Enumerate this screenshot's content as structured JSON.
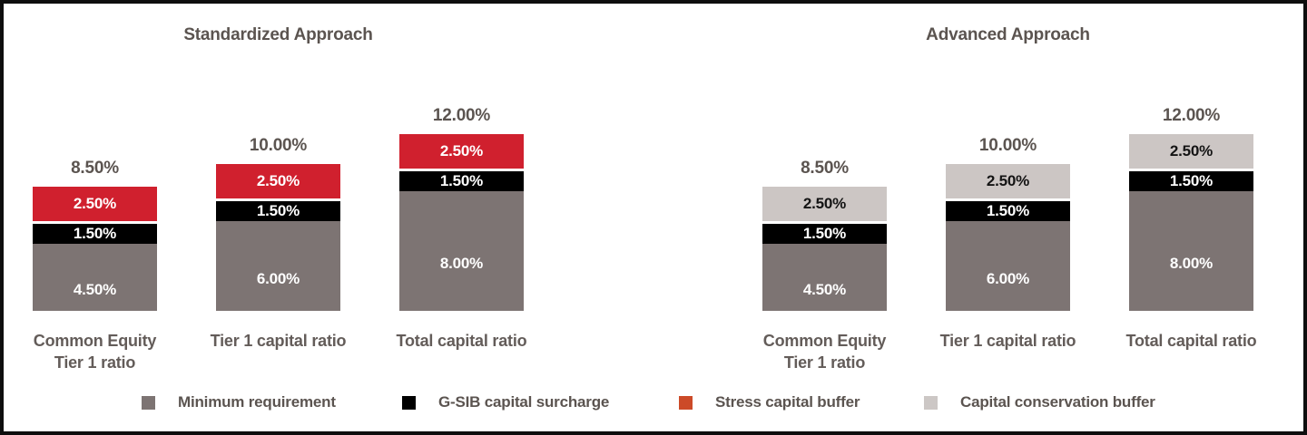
{
  "figure": {
    "background": "#ffffff",
    "border_color": "#0e0e0e"
  },
  "chart_data": {
    "type": "bar",
    "stacked": true,
    "orientation": "vertical",
    "grid": false,
    "axes_shown": false,
    "value_suffix": "%",
    "ylim": [
      0,
      12
    ],
    "panels": [
      {
        "id": "standardized",
        "title": "Standardized Approach",
        "categories": [
          "Common Equity Tier 1 ratio",
          "Tier 1 capital ratio",
          "Total capital ratio"
        ],
        "category_lines": [
          [
            "Common Equity",
            "Tier 1 ratio"
          ],
          [
            "Tier 1 capital ratio"
          ],
          [
            "Total capital ratio"
          ]
        ],
        "totals": [
          "8.50%",
          "10.00%",
          "12.00%"
        ],
        "total_values": [
          8.5,
          10.0,
          12.0
        ],
        "series": [
          {
            "name": "Minimum requirement",
            "color": "#7d7473",
            "text_color": "#ffffff",
            "values": [
              4.5,
              6.0,
              8.0
            ],
            "labels": [
              "4.50%",
              "6.00%",
              "8.00%"
            ]
          },
          {
            "name": "G-SIB capital surcharge",
            "color": "#000000",
            "text_color": "#ffffff",
            "values": [
              1.5,
              1.5,
              1.5
            ],
            "labels": [
              "1.50%",
              "1.50%",
              "1.50%"
            ]
          },
          {
            "name": "Stress capital buffer",
            "color": "#d0202e",
            "text_color": "#ffffff",
            "values": [
              2.5,
              2.5,
              2.5
            ],
            "labels": [
              "2.50%",
              "2.50%",
              "2.50%"
            ]
          }
        ]
      },
      {
        "id": "advanced",
        "title": "Advanced Approach",
        "categories": [
          "Common Equity Tier 1 ratio",
          "Tier 1 capital ratio",
          "Total capital ratio"
        ],
        "category_lines": [
          [
            "Common Equity",
            "Tier 1 ratio"
          ],
          [
            "Tier 1 capital ratio"
          ],
          [
            "Total capital ratio"
          ]
        ],
        "totals": [
          "8.50%",
          "10.00%",
          "12.00%"
        ],
        "total_values": [
          8.5,
          10.0,
          12.0
        ],
        "series": [
          {
            "name": "Minimum requirement",
            "color": "#7d7473",
            "text_color": "#ffffff",
            "values": [
              4.5,
              6.0,
              8.0
            ],
            "labels": [
              "4.50%",
              "6.00%",
              "8.00%"
            ]
          },
          {
            "name": "G-SIB capital surcharge",
            "color": "#000000",
            "text_color": "#ffffff",
            "values": [
              1.5,
              1.5,
              1.5
            ],
            "labels": [
              "1.50%",
              "1.50%",
              "1.50%"
            ]
          },
          {
            "name": "Capital conservation buffer",
            "color": "#ccc6c4",
            "text_color": "#141414",
            "values": [
              2.5,
              2.5,
              2.5
            ],
            "labels": [
              "2.50%",
              "2.50%",
              "2.50%"
            ]
          }
        ]
      }
    ],
    "legend": {
      "position": "bottom",
      "items": [
        {
          "label": "Minimum requirement",
          "color": "#7d7473"
        },
        {
          "label": "G-SIB capital surcharge",
          "color": "#000000"
        },
        {
          "label": "Stress capital buffer",
          "color": "#cc4a28"
        },
        {
          "label": "Capital conservation buffer",
          "color": "#ccc7c5"
        }
      ]
    }
  }
}
